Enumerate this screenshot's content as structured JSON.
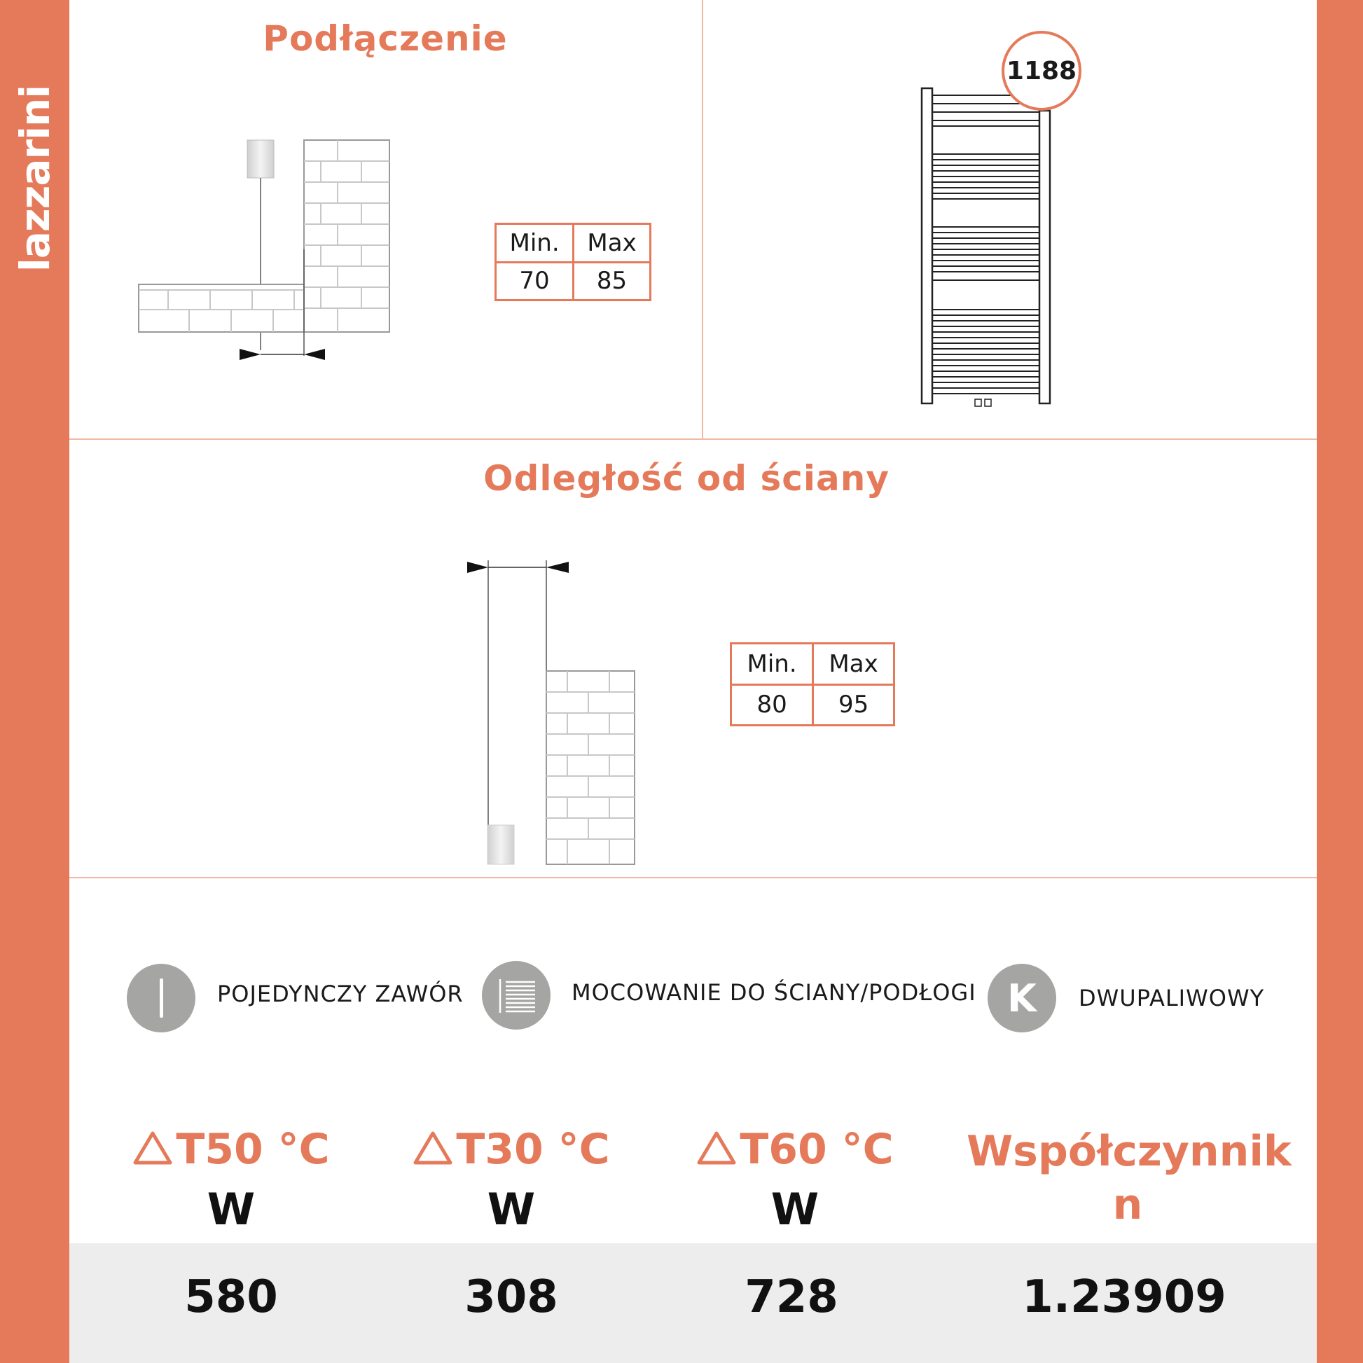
{
  "brand": "lazzarini",
  "connection": {
    "title": "Podłączenie",
    "min_label": "Min.",
    "max_label": "Max",
    "min_value": "70",
    "max_value": "85"
  },
  "radiator": {
    "height_badge": "1188"
  },
  "wall_distance": {
    "title": "Odległość od ściany",
    "min_label": "Min.",
    "max_label": "Max",
    "min_value": "80",
    "max_value": "95"
  },
  "features": [
    {
      "icon": "single-valve-icon",
      "label": "POJEDYNCZY ZAWÓR"
    },
    {
      "icon": "wall-floor-mount-icon",
      "label": "MOCOWANIE DO ŚCIANY/PODŁOGI",
      "glyph": ""
    },
    {
      "icon": "dual-fuel-icon",
      "label": "DWUPALIWOWY",
      "glyph": "K"
    }
  ],
  "specs": {
    "columns": [
      {
        "header": "T50 °C",
        "unit": "W",
        "value": "580"
      },
      {
        "header": "T30 °C",
        "unit": "W",
        "value": "308"
      },
      {
        "header": "T60 °C",
        "unit": "W",
        "value": "728"
      },
      {
        "header": "Współczynnik n",
        "unit": "",
        "value": "1.23909"
      }
    ]
  },
  "colors": {
    "accent": "#e57a5b",
    "icon_gray": "#a5a5a3",
    "row_bg": "#ededed"
  }
}
